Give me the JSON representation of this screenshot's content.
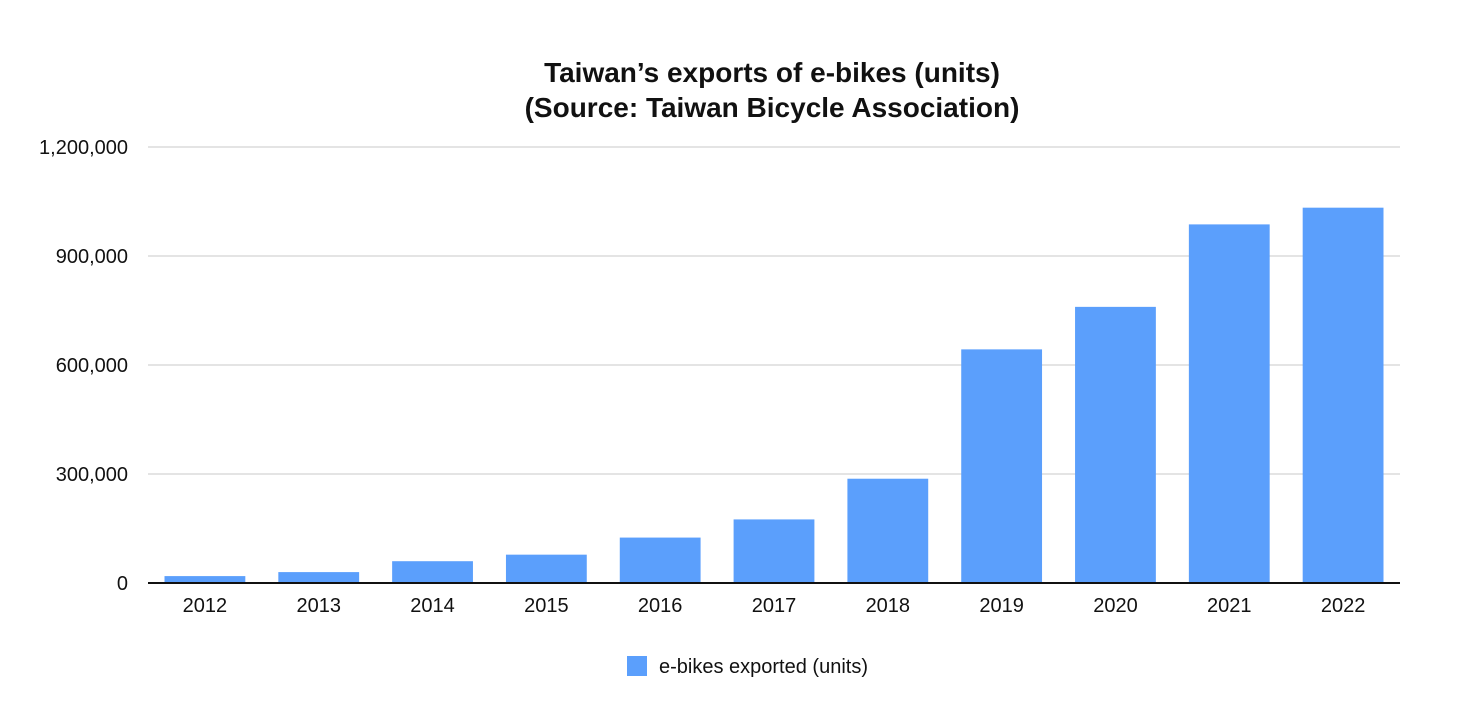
{
  "chart_data": {
    "type": "bar",
    "title": [
      "Taiwan’s exports of e-bikes (units)",
      "(Source: Taiwan Bicycle Association)"
    ],
    "xlabel": "",
    "ylabel": "",
    "categories": [
      "2012",
      "2013",
      "2014",
      "2015",
      "2016",
      "2017",
      "2018",
      "2019",
      "2020",
      "2021",
      "2022"
    ],
    "series": [
      {
        "name": "e-bikes exported (units)",
        "values": [
          19000,
          30000,
          60000,
          78000,
          125000,
          175000,
          287000,
          643000,
          760000,
          987000,
          1033000
        ]
      }
    ],
    "ylim": [
      0,
      1200000
    ],
    "yticks": [
      0,
      300000,
      600000,
      900000,
      1200000
    ],
    "ytick_labels": [
      "0",
      "300,000",
      "600,000",
      "900,000",
      "1,200,000"
    ],
    "grid": true,
    "legend_position": "bottom-center",
    "colors": {
      "bar": "#5b9ffc",
      "grid": "#c8c8c8",
      "axis": "#111111"
    }
  }
}
